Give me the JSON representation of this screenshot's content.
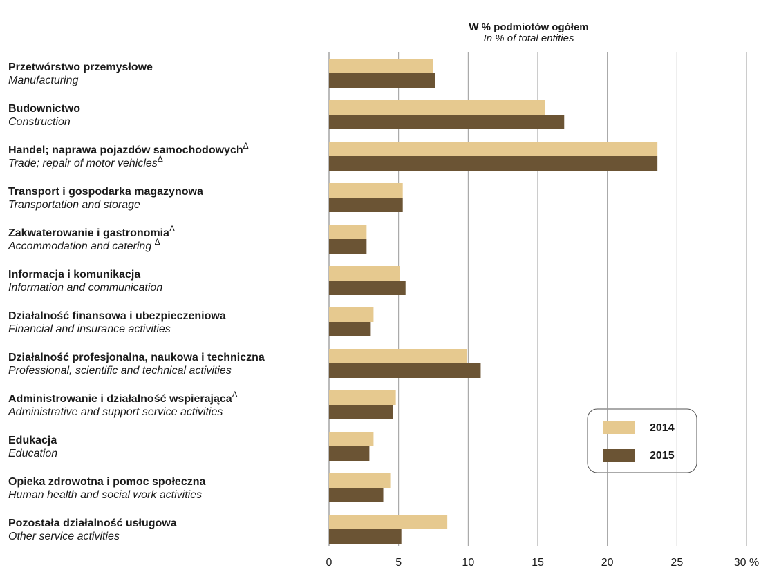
{
  "chart_data": {
    "type": "bar",
    "orientation": "horizontal",
    "axis_title": "W % podmiotów ogółem",
    "axis_subtitle": "In % of total entities",
    "categories": [
      "Przetwórstwo przemysłowe",
      "Budownictwo",
      "Handel; naprawa pojazdów samochodowychΔ",
      "Transport i gospodarka magazynowa",
      "Zakwaterowanie i gastronomiaΔ",
      "Informacja i komunikacja",
      "Działalność finansowa i ubezpieczeniowa",
      "Działalność profesjonalna, naukowa i techniczna",
      "Administrowanie i działalność wspierającaΔ",
      "Edukacja",
      "Opieka zdrowotna i pomoc społeczna",
      "Pozostała działalność usługowa"
    ],
    "categories_en": [
      "Manufacturing",
      "Construction",
      "Trade; repair of motor vehiclesΔ",
      "Transportation and storage",
      "Accommodation and catering Δ",
      "Information and communication",
      "Financial and insurance activities",
      "Professional, scientific and technical activities",
      "Administrative and support service activities",
      "Education",
      "Human health and social work activities",
      "Other service activities"
    ],
    "series": [
      {
        "name": "2014",
        "color": "#e6c98f",
        "values": [
          7.5,
          15.5,
          23.6,
          5.3,
          2.7,
          5.1,
          3.2,
          9.9,
          4.8,
          3.2,
          4.4,
          8.5
        ]
      },
      {
        "name": "2015",
        "color": "#6b5434",
        "values": [
          7.6,
          16.9,
          23.6,
          5.3,
          2.7,
          5.5,
          3.0,
          10.9,
          4.6,
          2.9,
          3.9,
          5.2
        ]
      }
    ],
    "xlim": [
      0,
      30
    ],
    "xticks": [
      0,
      5,
      10,
      15,
      20,
      25,
      {
        "value": 30,
        "label": "30 %"
      }
    ],
    "grid": true
  }
}
